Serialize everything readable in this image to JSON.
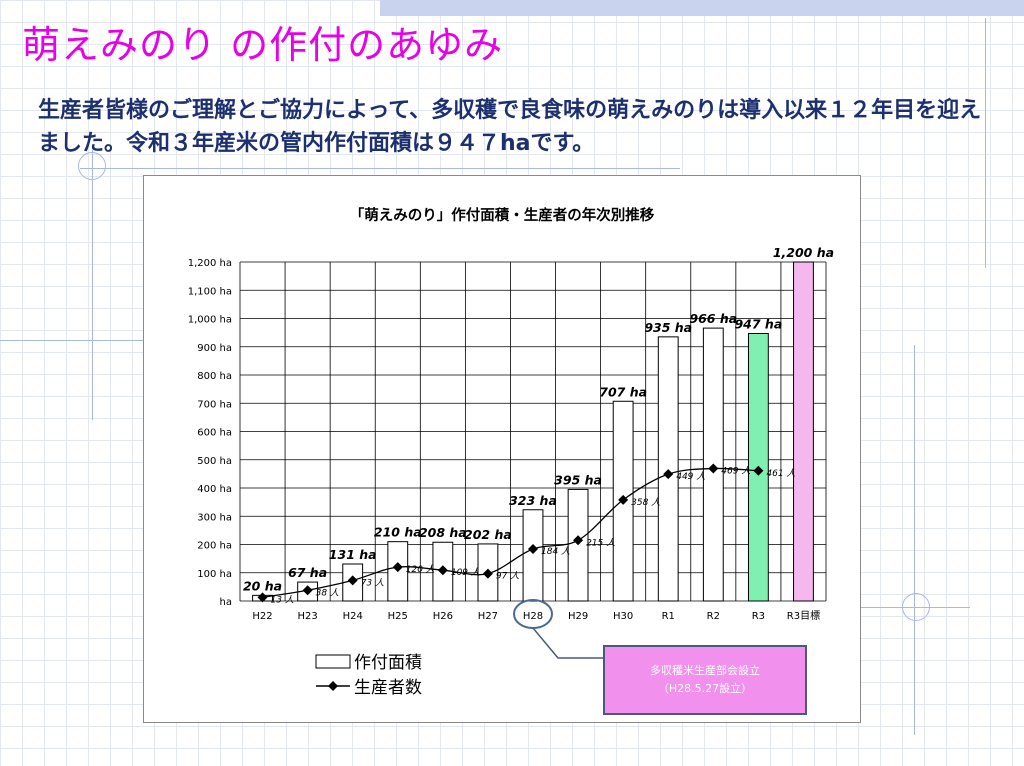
{
  "slide": {
    "title": "萌えみのり の作付のあゆみ",
    "subtitle": "生産者皆様のご理解とご協力によって、多収穫で良食味の萌えみのりは導入以来１２年目を迎えました。令和３年産米の管内作付面積は９４７haです。"
  },
  "colors": {
    "title": "#e800e8",
    "subtitle": "#1c2f6e",
    "bar_default": "#ffffff",
    "bar_r3": "#80f0b0",
    "bar_target": "#f4b8ef",
    "callout_fill": "#f290ee",
    "callout_border": "#4a5a78",
    "highlight_ellipse": "#4a6a95"
  },
  "chart_data": {
    "type": "bar",
    "title": "「萌えみのり」作付面積・生産者の年次別推移",
    "categories": [
      "H22",
      "H23",
      "H24",
      "H25",
      "H26",
      "H27",
      "H28",
      "H29",
      "H30",
      "R1",
      "R2",
      "R3",
      "R3目標"
    ],
    "series": [
      {
        "name": "作付面積",
        "kind": "bar",
        "values": [
          20,
          67,
          131,
          210,
          208,
          202,
          323,
          395,
          707,
          935,
          966,
          947,
          1200
        ],
        "labels": [
          "20 ha",
          "67 ha",
          "131 ha",
          "210 ha",
          "208 ha",
          "202 ha",
          "323 ha",
          "395 ha",
          "707 ha",
          "935 ha",
          "966 ha",
          "947 ha",
          "1,200 ha"
        ]
      },
      {
        "name": "生産者数",
        "kind": "line",
        "values": [
          13,
          38,
          73,
          120,
          109,
          97,
          184,
          215,
          358,
          449,
          469,
          461,
          null
        ],
        "labels": [
          "13 人",
          "38 人",
          "73 人",
          "120 人",
          "109 人",
          "97 人",
          "184 人",
          "215 人",
          "358 人",
          "449 人",
          "469 人",
          "461 人",
          ""
        ]
      }
    ],
    "y_ticks": [
      "ha",
      "100 ha",
      "200 ha",
      "300 ha",
      "400 ha",
      "500 ha",
      "600 ha",
      "700 ha",
      "800 ha",
      "900 ha",
      "1,000 ha",
      "1,100 ha",
      "1,200 ha"
    ],
    "ylim": [
      0,
      1200
    ],
    "grid": true,
    "legend_position": "bottom-left",
    "highlight_category": "H28",
    "callout": {
      "line1": "多収穫米生産部会設立",
      "line2": "（H28.5.27設立）"
    }
  }
}
